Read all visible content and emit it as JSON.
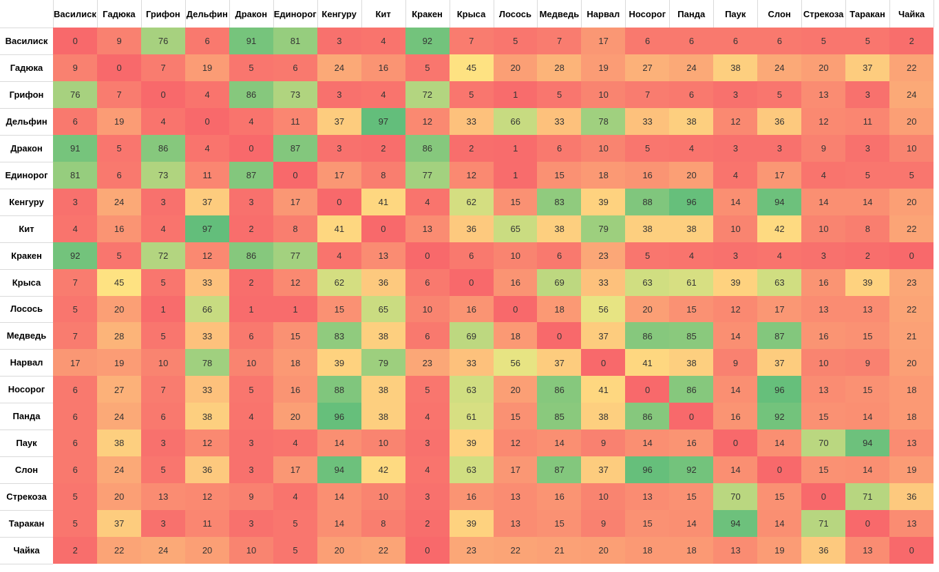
{
  "chart_data": {
    "type": "heatmap",
    "title": "",
    "xlabel": "",
    "ylabel": "",
    "color_scale": {
      "low": "#f8696b",
      "mid": "#ffeb84",
      "high": "#63be7b"
    },
    "value_range": [
      0,
      97
    ],
    "labels": [
      "Василиск",
      "Гадюка",
      "Грифон",
      "Дельфин",
      "Дракон",
      "Единорог",
      "Кенгуру",
      "Кит",
      "Кракен",
      "Крыса",
      "Лосось",
      "Медведь",
      "Нарвал",
      "Носорог",
      "Панда",
      "Паук",
      "Слон",
      "Стрекоза",
      "Таракан",
      "Чайка"
    ],
    "matrix": [
      [
        0,
        9,
        76,
        6,
        91,
        81,
        3,
        4,
        92,
        7,
        5,
        7,
        17,
        6,
        6,
        6,
        6,
        5,
        5,
        2
      ],
      [
        9,
        0,
        7,
        19,
        5,
        6,
        24,
        16,
        5,
        45,
        20,
        28,
        19,
        27,
        24,
        38,
        24,
        20,
        37,
        22
      ],
      [
        76,
        7,
        0,
        4,
        86,
        73,
        3,
        4,
        72,
        5,
        1,
        5,
        10,
        7,
        6,
        3,
        5,
        13,
        3,
        24
      ],
      [
        6,
        19,
        4,
        0,
        4,
        11,
        37,
        97,
        12,
        33,
        66,
        33,
        78,
        33,
        38,
        12,
        36,
        12,
        11,
        20
      ],
      [
        91,
        5,
        86,
        4,
        0,
        87,
        3,
        2,
        86,
        2,
        1,
        6,
        10,
        5,
        4,
        3,
        3,
        9,
        3,
        10
      ],
      [
        81,
        6,
        73,
        11,
        87,
        0,
        17,
        8,
        77,
        12,
        1,
        15,
        18,
        16,
        20,
        4,
        17,
        4,
        5,
        5
      ],
      [
        3,
        24,
        3,
        37,
        3,
        17,
        0,
        41,
        4,
        62,
        15,
        83,
        39,
        88,
        96,
        14,
        94,
        14,
        14,
        20
      ],
      [
        4,
        16,
        4,
        97,
        2,
        8,
        41,
        0,
        13,
        36,
        65,
        38,
        79,
        38,
        38,
        10,
        42,
        10,
        8,
        22
      ],
      [
        92,
        5,
        72,
        12,
        86,
        77,
        4,
        13,
        0,
        6,
        10,
        6,
        23,
        5,
        4,
        3,
        4,
        3,
        2,
        0
      ],
      [
        7,
        45,
        5,
        33,
        2,
        12,
        62,
        36,
        6,
        0,
        16,
        69,
        33,
        63,
        61,
        39,
        63,
        16,
        39,
        23
      ],
      [
        5,
        20,
        1,
        66,
        1,
        1,
        15,
        65,
        10,
        16,
        0,
        18,
        56,
        20,
        15,
        12,
        17,
        13,
        13,
        22
      ],
      [
        7,
        28,
        5,
        33,
        6,
        15,
        83,
        38,
        6,
        69,
        18,
        0,
        37,
        86,
        85,
        14,
        87,
        16,
        15,
        21
      ],
      [
        17,
        19,
        10,
        78,
        10,
        18,
        39,
        79,
        23,
        33,
        56,
        37,
        0,
        41,
        38,
        9,
        37,
        10,
        9,
        20
      ],
      [
        6,
        27,
        7,
        33,
        5,
        16,
        88,
        38,
        5,
        63,
        20,
        86,
        41,
        0,
        86,
        14,
        96,
        13,
        15,
        18
      ],
      [
        6,
        24,
        6,
        38,
        4,
        20,
        96,
        38,
        4,
        61,
        15,
        85,
        38,
        86,
        0,
        16,
        92,
        15,
        14,
        18
      ],
      [
        6,
        38,
        3,
        12,
        3,
        4,
        14,
        10,
        3,
        39,
        12,
        14,
        9,
        14,
        16,
        0,
        14,
        70,
        94,
        13
      ],
      [
        6,
        24,
        5,
        36,
        3,
        17,
        94,
        42,
        4,
        63,
        17,
        87,
        37,
        96,
        92,
        14,
        0,
        15,
        14,
        19
      ],
      [
        5,
        20,
        13,
        12,
        9,
        4,
        14,
        10,
        3,
        16,
        13,
        16,
        10,
        13,
        15,
        70,
        15,
        0,
        71,
        36
      ],
      [
        5,
        37,
        3,
        11,
        3,
        5,
        14,
        8,
        2,
        39,
        13,
        15,
        9,
        15,
        14,
        94,
        14,
        71,
        0,
        13
      ],
      [
        2,
        22,
        24,
        20,
        10,
        5,
        20,
        22,
        0,
        23,
        22,
        21,
        20,
        18,
        18,
        13,
        19,
        36,
        13,
        0
      ]
    ]
  }
}
